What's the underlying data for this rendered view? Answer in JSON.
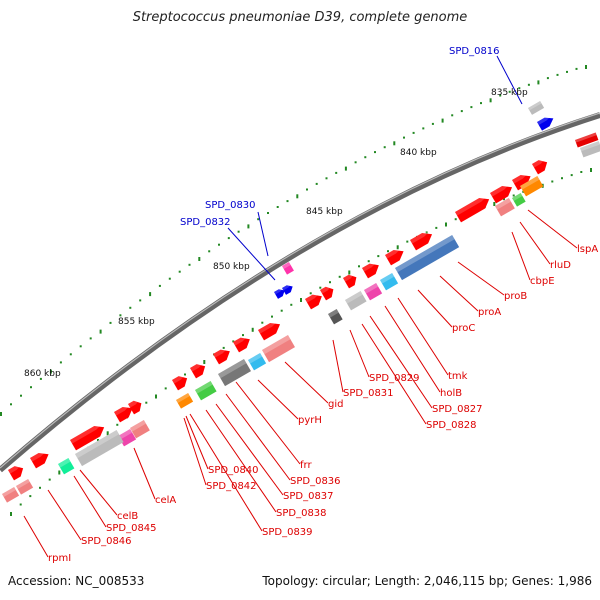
{
  "title": "Streptococcus pneumoniae D39, complete genome",
  "footer": {
    "accession": "Accession: NC_008533",
    "stats": "Topology: circular; Length: 2,046,115 bp; Genes: 1,986"
  },
  "colors": {
    "gene_red": "#ff0000",
    "label_red": "#dd0000",
    "label_blue": "#0000cc",
    "backbone": "#666666",
    "ticks": "#228822"
  },
  "scale_labels": [
    "835 kbp",
    "840 kbp",
    "845 kbp",
    "850 kbp",
    "855 kbp",
    "860 kbp"
  ],
  "outer_labels": [
    "SPD_0816",
    "SPD_0830",
    "SPD_0832"
  ],
  "inner_labels": [
    "lspA",
    "rluD",
    "cbpE",
    "proB",
    "proA",
    "proC",
    "tmk",
    "holB",
    "SPD_0827",
    "SPD_0828",
    "SPD_0829",
    "SPD_0831",
    "gid",
    "pyrH",
    "frr",
    "SPD_0836",
    "SPD_0837",
    "SPD_0838",
    "SPD_0839",
    "SPD_0840",
    "SPD_0842",
    "celA",
    "celB",
    "SPD_0845",
    "SPD_0846",
    "rpmI"
  ]
}
